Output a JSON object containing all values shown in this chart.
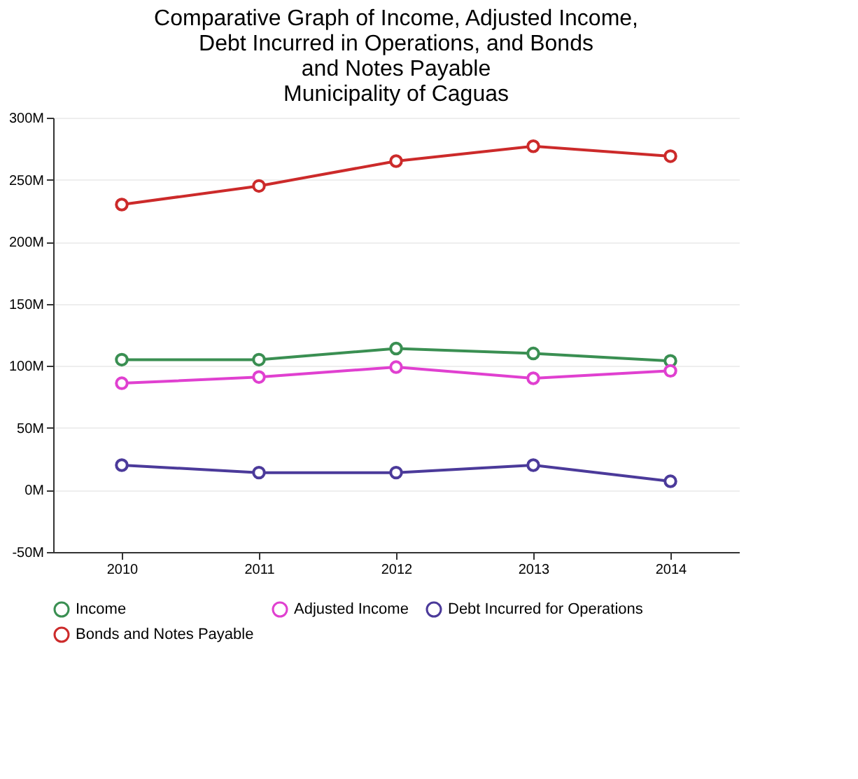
{
  "chart_data": {
    "type": "line",
    "title": [
      "Comparative Graph of Income, Adjusted Income,",
      "Debt Incurred in Operations, and Bonds",
      "and Notes Payable",
      "Municipality of Caguas"
    ],
    "categories": [
      "2010",
      "2011",
      "2012",
      "2013",
      "2014"
    ],
    "series": [
      {
        "name": "Income",
        "color": "#3a8f52",
        "values": [
          105,
          105,
          114,
          110,
          104
        ]
      },
      {
        "name": "Adjusted Income",
        "color": "#e040d0",
        "values": [
          86,
          91,
          99,
          90,
          96
        ]
      },
      {
        "name": "Debt Incurred for Operations",
        "color": "#4b3a9a",
        "values": [
          20,
          14,
          14,
          20,
          7
        ]
      },
      {
        "name": "Bonds and Notes Payable",
        "color": "#cc2a2a",
        "values": [
          230,
          245,
          265,
          277,
          269
        ]
      }
    ],
    "ylim": [
      -50,
      300
    ],
    "yticks": [
      {
        "value": -50,
        "label": "-50M"
      },
      {
        "value": 0,
        "label": "0M"
      },
      {
        "value": 50,
        "label": "50M"
      },
      {
        "value": 100,
        "label": "100M"
      },
      {
        "value": 150,
        "label": "150M"
      },
      {
        "value": 200,
        "label": "200M"
      },
      {
        "value": 250,
        "label": "250M"
      },
      {
        "value": 300,
        "label": "300M"
      }
    ],
    "grid": "y",
    "legend": "bottom",
    "marker": "circle",
    "line_style": "solid"
  }
}
